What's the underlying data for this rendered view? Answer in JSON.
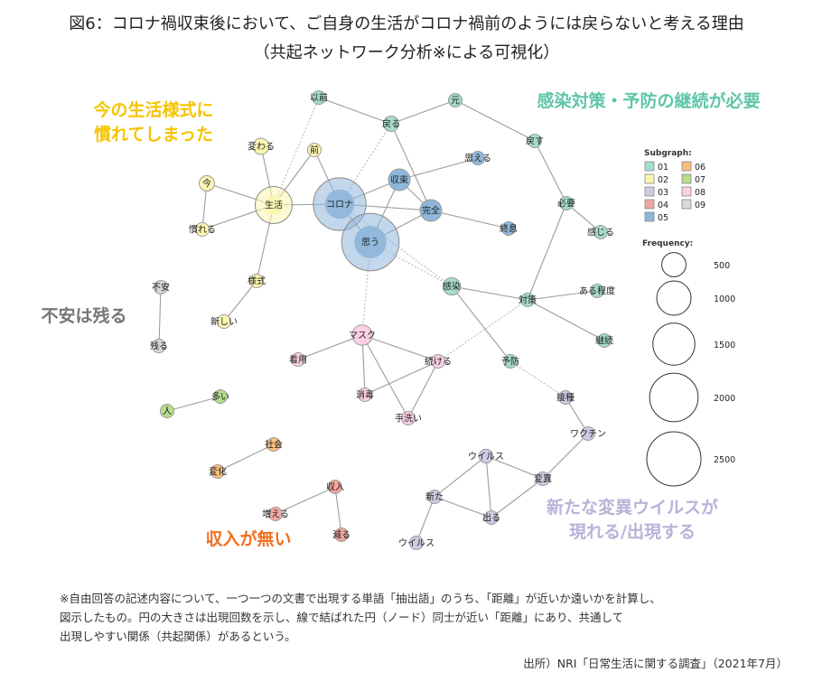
{
  "title": {
    "line1": "図6：コロナ禍収束後において、ご自身の生活がコロナ禍前のようには戻らないと考える理由",
    "line2": "（共起ネットワーク分析※による可視化）"
  },
  "group_labels": [
    {
      "id": "g1",
      "lines": [
        "今の生活様式に",
        "慣れてしまった"
      ],
      "color": "#f5c400"
    },
    {
      "id": "g2",
      "lines": [
        "感染対策・予防の継続が必要"
      ],
      "color": "#5fc5a8"
    },
    {
      "id": "g3",
      "lines": [
        "不安は残る"
      ],
      "color": "#777777"
    },
    {
      "id": "g4",
      "lines": [
        "収入が無い"
      ],
      "color": "#f26f1f"
    },
    {
      "id": "g5",
      "lines": [
        "新たな変異ウイルスが",
        "現れる/出現する"
      ],
      "color": "#b8b3d8"
    }
  ],
  "subgraph_colors": {
    "01": "#a6dccd",
    "02": "#fdf6b3",
    "03": "#cfcbe3",
    "04": "#f3a6a0",
    "05": "#8fb7db",
    "06": "#f9be7f",
    "07": "#b7dc8a",
    "08": "#fbd0e5",
    "09": "#d9d9d9"
  },
  "nodes": [
    {
      "id": "izen",
      "label": "以前",
      "sg": "01",
      "freq": 120
    },
    {
      "id": "modoru",
      "label": "戻る",
      "sg": "01",
      "freq": 200
    },
    {
      "id": "moto",
      "label": "元",
      "sg": "01",
      "freq": 80
    },
    {
      "id": "modosu",
      "label": "戻す",
      "sg": "01",
      "freq": 60
    },
    {
      "id": "hitsuyou",
      "label": "必要",
      "sg": "01",
      "freq": 110
    },
    {
      "id": "kanjiru",
      "label": "感じる",
      "sg": "01",
      "freq": 80
    },
    {
      "id": "kansen",
      "label": "感染",
      "sg": "01",
      "freq": 260
    },
    {
      "id": "arumeido",
      "label": "ある程度",
      "sg": "01",
      "freq": 60
    },
    {
      "id": "taisaku",
      "label": "対策",
      "sg": "01",
      "freq": 90
    },
    {
      "id": "keizoku",
      "label": "継続",
      "sg": "01",
      "freq": 60
    },
    {
      "id": "yobou",
      "label": "予防",
      "sg": "01",
      "freq": 70
    },
    {
      "id": "kawaru",
      "label": "変わる",
      "sg": "02",
      "freq": 220
    },
    {
      "id": "mae",
      "label": "前",
      "sg": "02",
      "freq": 140
    },
    {
      "id": "ima",
      "label": "今",
      "sg": "02",
      "freq": 200
    },
    {
      "id": "seikatsu",
      "label": "生活",
      "sg": "02",
      "freq": 850
    },
    {
      "id": "nareru",
      "label": "慣れる",
      "sg": "02",
      "freq": 140
    },
    {
      "id": "yoshiki",
      "label": "様式",
      "sg": "02",
      "freq": 70
    },
    {
      "id": "atarashii",
      "label": "新しい",
      "sg": "02",
      "freq": 60
    },
    {
      "id": "sesshu",
      "label": "接種",
      "sg": "03",
      "freq": 60
    },
    {
      "id": "wakuchin",
      "label": "ワクチン",
      "sg": "03",
      "freq": 60
    },
    {
      "id": "uirusu1",
      "label": "ウイルス",
      "sg": "03",
      "freq": 160
    },
    {
      "id": "henni",
      "label": "変異",
      "sg": "03",
      "freq": 70
    },
    {
      "id": "aratana",
      "label": "新た",
      "sg": "03",
      "freq": 60
    },
    {
      "id": "deru",
      "label": "出る",
      "sg": "03",
      "freq": 70
    },
    {
      "id": "uirusu2",
      "label": "ウイルス",
      "sg": "03",
      "freq": 60
    },
    {
      "id": "shunyu",
      "label": "収入",
      "sg": "04",
      "freq": 140
    },
    {
      "id": "fueru",
      "label": "増える",
      "sg": "04",
      "freq": 90
    },
    {
      "id": "heru",
      "label": "減る",
      "sg": "04",
      "freq": 120
    },
    {
      "id": "corona",
      "label": "コロナ",
      "sg": "05",
      "freq": 1900
    },
    {
      "id": "omou",
      "label": "思う",
      "sg": "05",
      "freq": 2300
    },
    {
      "id": "shusoku",
      "label": "収束",
      "sg": "05",
      "freq": 400
    },
    {
      "id": "kanzen",
      "label": "完全",
      "sg": "05",
      "freq": 400
    },
    {
      "id": "omoeru",
      "label": "思える",
      "sg": "05",
      "freq": 70
    },
    {
      "id": "shusoku2",
      "label": "終息",
      "sg": "05",
      "freq": 90
    },
    {
      "id": "shakai",
      "label": "社会",
      "sg": "06",
      "freq": 80
    },
    {
      "id": "henka",
      "label": "変化",
      "sg": "06",
      "freq": 130
    },
    {
      "id": "hito",
      "label": "人",
      "sg": "07",
      "freq": 90
    },
    {
      "id": "ooi",
      "label": "多い",
      "sg": "07",
      "freq": 60
    },
    {
      "id": "masuku",
      "label": "マスク",
      "sg": "08",
      "freq": 350
    },
    {
      "id": "chakuyou",
      "label": "着用",
      "sg": "08",
      "freq": 60
    },
    {
      "id": "tsuzukeru",
      "label": "続ける",
      "sg": "08",
      "freq": 120
    },
    {
      "id": "shoudoku",
      "label": "消毒",
      "sg": "08",
      "freq": 90
    },
    {
      "id": "tearai",
      "label": "手洗い",
      "sg": "08",
      "freq": 60
    },
    {
      "id": "fuan",
      "label": "不安",
      "sg": "09",
      "freq": 150
    },
    {
      "id": "nokoru",
      "label": "残る",
      "sg": "09",
      "freq": 70
    }
  ],
  "edges": [
    {
      "s": "izen",
      "t": "modoru",
      "dashed": false
    },
    {
      "s": "modoru",
      "t": "moto",
      "dashed": false
    },
    {
      "s": "moto",
      "t": "modosu",
      "dashed": false
    },
    {
      "s": "modosu",
      "t": "hitsuyou",
      "dashed": false
    },
    {
      "s": "hitsuyou",
      "t": "kanjiru",
      "dashed": false
    },
    {
      "s": "hitsuyou",
      "t": "taisaku",
      "dashed": false
    },
    {
      "s": "kansen",
      "t": "taisaku",
      "dashed": false
    },
    {
      "s": "kansen",
      "t": "yobou",
      "dashed": false
    },
    {
      "s": "taisaku",
      "t": "arumeido",
      "dashed": false
    },
    {
      "s": "taisaku",
      "t": "keizoku",
      "dashed": false
    },
    {
      "s": "modoru",
      "t": "kanzen",
      "dashed": false
    },
    {
      "s": "modoru",
      "t": "corona",
      "dashed": true
    },
    {
      "s": "izen",
      "t": "seikatsu",
      "dashed": true
    },
    {
      "s": "mae",
      "t": "seikatsu",
      "dashed": false
    },
    {
      "s": "mae",
      "t": "corona",
      "dashed": false
    },
    {
      "s": "kawaru",
      "t": "seikatsu",
      "dashed": false
    },
    {
      "s": "ima",
      "t": "seikatsu",
      "dashed": false
    },
    {
      "s": "nareru",
      "t": "seikatsu",
      "dashed": false
    },
    {
      "s": "ima",
      "t": "nareru",
      "dashed": false
    },
    {
      "s": "seikatsu",
      "t": "yoshiki",
      "dashed": false
    },
    {
      "s": "yoshiki",
      "t": "atarashii",
      "dashed": false
    },
    {
      "s": "seikatsu",
      "t": "corona",
      "dashed": false
    },
    {
      "s": "corona",
      "t": "omou",
      "dashed": false
    },
    {
      "s": "corona",
      "t": "shusoku",
      "dashed": false
    },
    {
      "s": "corona",
      "t": "kanzen",
      "dashed": false
    },
    {
      "s": "shusoku",
      "t": "omou",
      "dashed": false
    },
    {
      "s": "shusoku",
      "t": "omoeru",
      "dashed": false
    },
    {
      "s": "kanzen",
      "t": "omou",
      "dashed": false
    },
    {
      "s": "kanzen",
      "t": "shusoku2",
      "dashed": false
    },
    {
      "s": "shusoku",
      "t": "kanzen",
      "dashed": false
    },
    {
      "s": "omou",
      "t": "kansen",
      "dashed": true
    },
    {
      "s": "corona",
      "t": "kansen",
      "dashed": true
    },
    {
      "s": "omou",
      "t": "masuku",
      "dashed": true
    },
    {
      "s": "masuku",
      "t": "chakuyou",
      "dashed": false
    },
    {
      "s": "masuku",
      "t": "tsuzukeru",
      "dashed": false
    },
    {
      "s": "masuku",
      "t": "shoudoku",
      "dashed": false
    },
    {
      "s": "masuku",
      "t": "tearai",
      "dashed": false
    },
    {
      "s": "shoudoku",
      "t": "tsuzukeru",
      "dashed": false
    },
    {
      "s": "tearai",
      "t": "tsuzukeru",
      "dashed": false
    },
    {
      "s": "tsuzukeru",
      "t": "taisaku",
      "dashed": true
    },
    {
      "s": "yobou",
      "t": "sesshu",
      "dashed": true
    },
    {
      "s": "sesshu",
      "t": "wakuchin",
      "dashed": false
    },
    {
      "s": "wakuchin",
      "t": "henni",
      "dashed": false
    },
    {
      "s": "uirusu1",
      "t": "henni",
      "dashed": false
    },
    {
      "s": "uirusu1",
      "t": "aratana",
      "dashed": false
    },
    {
      "s": "uirusu1",
      "t": "deru",
      "dashed": false
    },
    {
      "s": "aratana",
      "t": "deru",
      "dashed": false
    },
    {
      "s": "aratana",
      "t": "uirusu2",
      "dashed": false
    },
    {
      "s": "henni",
      "t": "deru",
      "dashed": false
    },
    {
      "s": "shunyu",
      "t": "fueru",
      "dashed": false
    },
    {
      "s": "shunyu",
      "t": "heru",
      "dashed": false
    },
    {
      "s": "shakai",
      "t": "henka",
      "dashed": false
    },
    {
      "s": "hito",
      "t": "ooi",
      "dashed": false
    },
    {
      "s": "fuan",
      "t": "nokoru",
      "dashed": false
    }
  ],
  "legend": {
    "subgraph_title": "Subgraph:",
    "frequency_title": "Frequency:",
    "subgraphs": [
      "01",
      "02",
      "03",
      "04",
      "05",
      "06",
      "07",
      "08",
      "09"
    ],
    "frequencies": [
      500,
      1000,
      1500,
      2000,
      2500
    ]
  },
  "note": [
    "※自由回答の記述内容について、一つ一つの文書で出現する単語「抽出語」のうち、「距離」が近いか遠いかを計算し、",
    "図示したもの。円の大きさは出現回数を示し、線で結ばれた円（ノード）同士が近い「距離」にあり、共通して",
    "出現しやすい関係（共起関係）があるという。"
  ],
  "source": "出所）NRI「日常生活に関する調査」（2021年7月）"
}
